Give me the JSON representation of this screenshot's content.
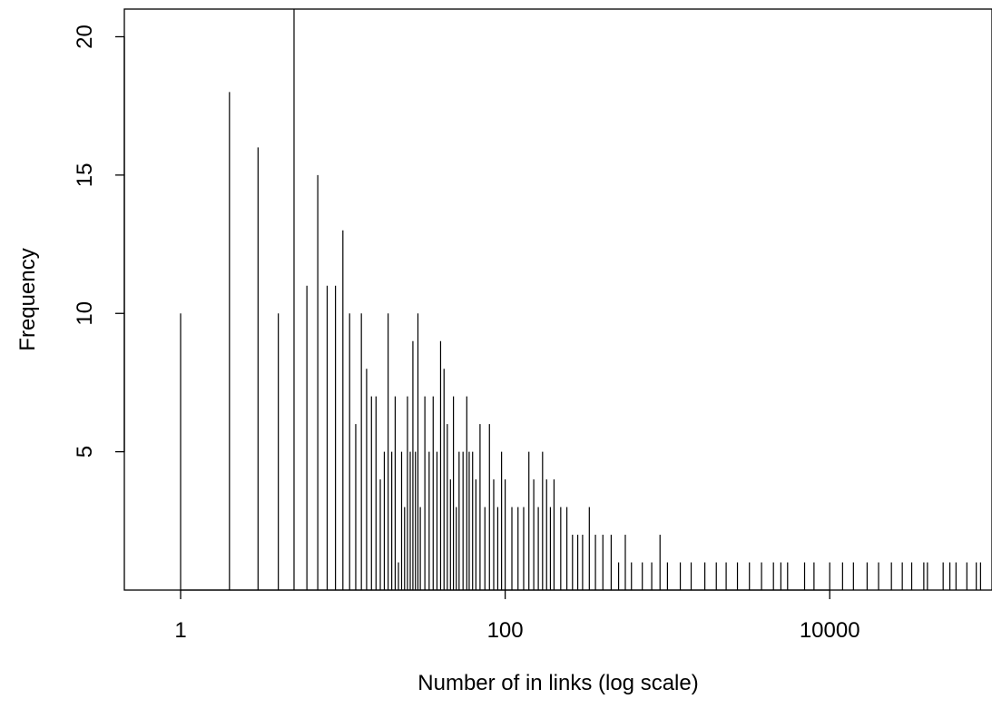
{
  "chart_data": {
    "type": "bar",
    "title": "",
    "xlabel": "Number of in links (log scale)",
    "ylabel": "Frequency",
    "x_scale": "log10",
    "xlim": [
      0.45,
      100000
    ],
    "ylim": [
      0,
      21
    ],
    "grid": false,
    "legend": "none",
    "x_ticks": [
      {
        "value": 1,
        "label": "1"
      },
      {
        "value": 100,
        "label": "100"
      },
      {
        "value": 10000,
        "label": "10000"
      }
    ],
    "y_ticks": [
      {
        "value": 5,
        "label": "5"
      },
      {
        "value": 10,
        "label": "10"
      },
      {
        "value": 15,
        "label": "15"
      },
      {
        "value": 20,
        "label": "20"
      }
    ],
    "series": [
      {
        "x": [
          1,
          2,
          3,
          4,
          5,
          6,
          7,
          8,
          9,
          10,
          11,
          12,
          13,
          14,
          15,
          16,
          17,
          18,
          19,
          20,
          21,
          22,
          23,
          24,
          25,
          26,
          27,
          28,
          29,
          30,
          32,
          34,
          36,
          38,
          40,
          42,
          44,
          46,
          48,
          50,
          52,
          55,
          58,
          60,
          63,
          66,
          70,
          75,
          80,
          85,
          90,
          95,
          100,
          110,
          120,
          130,
          140,
          150,
          160,
          170,
          180,
          190,
          200,
          220,
          240,
          260,
          280,
          300,
          330,
          360,
          400,
          450,
          500,
          550,
          600,
          700,
          800,
          900,
          1000,
          1200,
          1400,
          1700,
          2000,
          2300,
          2700,
          3200,
          3800,
          4500,
          5000,
          5500,
          7000,
          8000,
          10000,
          12000,
          14000,
          17000,
          20000,
          24000,
          28000,
          32000,
          38000,
          40000,
          50000,
          55000,
          60000,
          70000,
          80000,
          85000
        ],
        "values": [
          10,
          18,
          16,
          10,
          21,
          11,
          15,
          11,
          11,
          13,
          10,
          6,
          10,
          8,
          7,
          7,
          4,
          5,
          10,
          5,
          7,
          1,
          5,
          3,
          7,
          5,
          9,
          5,
          10,
          3,
          7,
          5,
          7,
          5,
          9,
          8,
          6,
          4,
          7,
          3,
          5,
          5,
          7,
          5,
          5,
          4,
          6,
          3,
          6,
          4,
          3,
          5,
          4,
          3,
          3,
          3,
          5,
          4,
          3,
          5,
          4,
          3,
          4,
          3,
          3,
          2,
          2,
          2,
          3,
          2,
          2,
          2,
          1,
          2,
          1,
          1,
          1,
          2,
          1,
          1,
          1,
          1,
          1,
          1,
          1,
          1,
          1,
          1,
          1,
          1,
          1,
          1,
          1,
          1,
          1,
          1,
          1,
          1,
          1,
          1,
          1,
          1,
          1,
          1,
          1,
          1,
          1,
          1
        ]
      }
    ]
  }
}
